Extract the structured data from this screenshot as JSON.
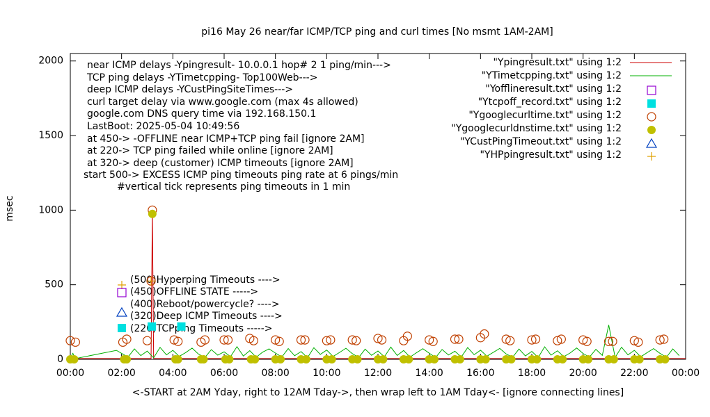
{
  "chart_data": {
    "type": "line",
    "title": "pi16 May 26  near/far ICMP/TCP ping and curl times [No msmt 1AM-2AM]",
    "ylabel": "msec",
    "xlabel": "<-START at 2AM Yday, right to 12AM Tday->, then wrap left to 1AM Tday<- [ignore connecting lines]",
    "annotations": [
      "near ICMP delays -Ypingresult- 10.0.0.1 hop# 2 1 ping/min--->",
      "TCP ping delays -YTimetcpping- Top100Web--->",
      "deep ICMP delays -YCustPingSiteTimes--->",
      "curl target delay via www.google.com (max 4s allowed)",
      "google.com DNS query time via 192.168.150.1",
      "LastBoot: 2025-05-04 10:49:56",
      "at 450-> -OFFLINE near ICMP+TCP ping fail [ignore 2AM]",
      "at 220-> TCP ping failed while online [ignore 2AM]",
      "at 320-> deep (customer) ICMP timeouts [ignore 2AM]",
      "start 500-> EXCESS ICMP ping timeouts ping rate at 6 pings/min",
      "#vertical tick represents ping timeouts in 1 min"
    ],
    "key_labels": [
      "(500)Hyperping Timeouts ---->",
      "(450)OFFLINE STATE ----->",
      "(400)Reboot/powercycle? ---->",
      "(320)Deep ICMP Timeouts ---->",
      "(220)TCPping Timeouts ----->"
    ],
    "xlim": [
      0,
      24
    ],
    "ylim": [
      0,
      2050
    ],
    "xticks": [
      {
        "value": 0,
        "label": "00:00"
      },
      {
        "value": 2,
        "label": "02:00"
      },
      {
        "value": 4,
        "label": "04:00"
      },
      {
        "value": 6,
        "label": "06:00"
      },
      {
        "value": 8,
        "label": "08:00"
      },
      {
        "value": 10,
        "label": "10:00"
      },
      {
        "value": 12,
        "label": "12:00"
      },
      {
        "value": 14,
        "label": "14:00"
      },
      {
        "value": 16,
        "label": "16:00"
      },
      {
        "value": 18,
        "label": "18:00"
      },
      {
        "value": 20,
        "label": "20:00"
      },
      {
        "value": 22,
        "label": "22:00"
      },
      {
        "value": 24,
        "label": "00:00"
      }
    ],
    "yticks": [
      0,
      500,
      1000,
      1500,
      2000
    ],
    "grid": false,
    "legend": "top-right",
    "series": [
      {
        "name": "\"Ypingresult.txt\" using 1:2",
        "color": "#cc0000",
        "marker": "line",
        "x": [
          0,
          2,
          3.15,
          3.2,
          3.25,
          12,
          24
        ],
        "values": [
          5,
          5,
          5,
          1000,
          5,
          5,
          5
        ]
      },
      {
        "name": "\"YTimetcpping.txt\" using 1:2",
        "color": "#00b000",
        "marker": "line",
        "x": [
          0,
          0.1,
          0.2,
          1.8,
          2,
          2.25,
          2.5,
          2.75,
          3,
          3.25,
          3.5,
          3.75,
          4,
          4.25,
          4.5,
          4.75,
          5,
          5.25,
          5.5,
          5.75,
          6,
          6.25,
          6.5,
          6.75,
          7,
          7.25,
          7.5,
          7.75,
          8,
          8.25,
          8.5,
          8.75,
          9,
          9.25,
          9.5,
          9.75,
          10,
          10.25,
          10.5,
          10.75,
          11,
          11.25,
          11.5,
          11.75,
          12,
          12.25,
          12.5,
          12.75,
          13,
          13.25,
          13.5,
          13.75,
          14,
          14.25,
          14.5,
          14.75,
          15,
          15.25,
          15.5,
          15.75,
          16,
          16.25,
          16.5,
          16.75,
          17,
          17.25,
          17.5,
          17.75,
          18,
          18.25,
          18.5,
          18.75,
          19,
          19.25,
          19.5,
          19.75,
          20,
          20.25,
          20.5,
          20.75,
          21,
          21.25,
          21.5,
          21.75,
          22,
          22.25,
          22.5,
          22.75,
          23,
          23.25,
          23.5,
          23.75
        ],
        "values": [
          10,
          40,
          5,
          60,
          40,
          15,
          70,
          25,
          55,
          10,
          80,
          30,
          60,
          20,
          45,
          75,
          35,
          12,
          65,
          28,
          50,
          18,
          85,
          22,
          58,
          14,
          48,
          70,
          42,
          16,
          72,
          24,
          52,
          11,
          78,
          33,
          62,
          19,
          46,
          74,
          38,
          13,
          68,
          27,
          56,
          17,
          82,
          26,
          59,
          15,
          44,
          71,
          41,
          12,
          66,
          29,
          54,
          16,
          79,
          31,
          61,
          21,
          47,
          73,
          36,
          14,
          69,
          23,
          53,
          12,
          84,
          28,
          57,
          18,
          43,
          76,
          39,
          15,
          67,
          26,
          230,
          13,
          81,
          30,
          60,
          17,
          45,
          72,
          40,
          14,
          70,
          25
        ]
      },
      {
        "name": "\"Yofflineresult.txt\" using 1:2",
        "color": "#9400d3",
        "marker": "open-square",
        "x": [],
        "values": []
      },
      {
        "name": "\"Ytcpoff_record.txt\" using 1:2",
        "color": "#00e0e0",
        "marker": "filled-square",
        "x": [
          3.18,
          4.33
        ],
        "values": [
          220,
          220
        ]
      },
      {
        "name": "\"Ygooglecurltime.txt\" using 1:2",
        "color": "#c04000",
        "marker": "open-circle",
        "x": [
          0,
          0.2,
          2.05,
          2.2,
          3.0,
          3.2,
          3.15,
          4.05,
          4.2,
          5.1,
          5.25,
          6,
          6.15,
          7,
          7.15,
          8,
          8.15,
          9,
          9.15,
          10,
          10.15,
          11,
          11.15,
          12,
          12.15,
          13,
          13.15,
          14,
          14.15,
          15,
          15.15,
          16,
          16.15,
          17,
          17.15,
          18,
          18.15,
          19,
          19.15,
          20,
          20.15,
          21,
          21.15,
          22,
          22.15,
          23,
          23.15
        ],
        "values": [
          125,
          115,
          115,
          135,
          125,
          1000,
          525,
          130,
          120,
          115,
          130,
          130,
          130,
          140,
          125,
          130,
          120,
          130,
          130,
          125,
          130,
          130,
          125,
          140,
          130,
          125,
          155,
          130,
          120,
          135,
          135,
          145,
          170,
          135,
          125,
          130,
          135,
          125,
          135,
          130,
          120,
          120,
          120,
          125,
          115,
          130,
          135
        ]
      },
      {
        "name": "\"Ygooglecurldnstime.txt\" using 1:2",
        "color": "#c0c000",
        "marker": "filled-circle",
        "x": [
          0,
          0.15,
          2.1,
          2.2,
          3.2,
          4.1,
          4.2,
          5.1,
          5.2,
          6.05,
          6.2,
          7.05,
          7.2,
          8,
          8.2,
          9,
          9.2,
          10,
          10.2,
          11,
          11.2,
          12,
          12.2,
          13,
          13.2,
          14,
          14.2,
          15,
          15.2,
          16,
          16.2,
          17,
          17.2,
          18,
          18.2,
          19,
          19.2,
          20,
          20.2,
          21,
          21.2,
          22,
          22.2,
          23,
          23.2
        ],
        "values": [
          0,
          0,
          0,
          0,
          975,
          0,
          0,
          0,
          0,
          0,
          0,
          0,
          0,
          0,
          0,
          0,
          0,
          0,
          0,
          0,
          0,
          0,
          0,
          0,
          0,
          0,
          0,
          0,
          0,
          0,
          0,
          0,
          0,
          0,
          0,
          0,
          0,
          0,
          0,
          0,
          0,
          0,
          0,
          0,
          0
        ]
      },
      {
        "name": "\"YCustPingTimeout.txt\" using 1:2",
        "color": "#0040c0",
        "marker": "open-triangle",
        "x": [],
        "values": []
      },
      {
        "name": "\"YHPpingresult.txt\" using 1:2",
        "color": "#e0a000",
        "marker": "plus",
        "x": [
          3.15
        ],
        "values": [
          525
        ]
      }
    ]
  }
}
